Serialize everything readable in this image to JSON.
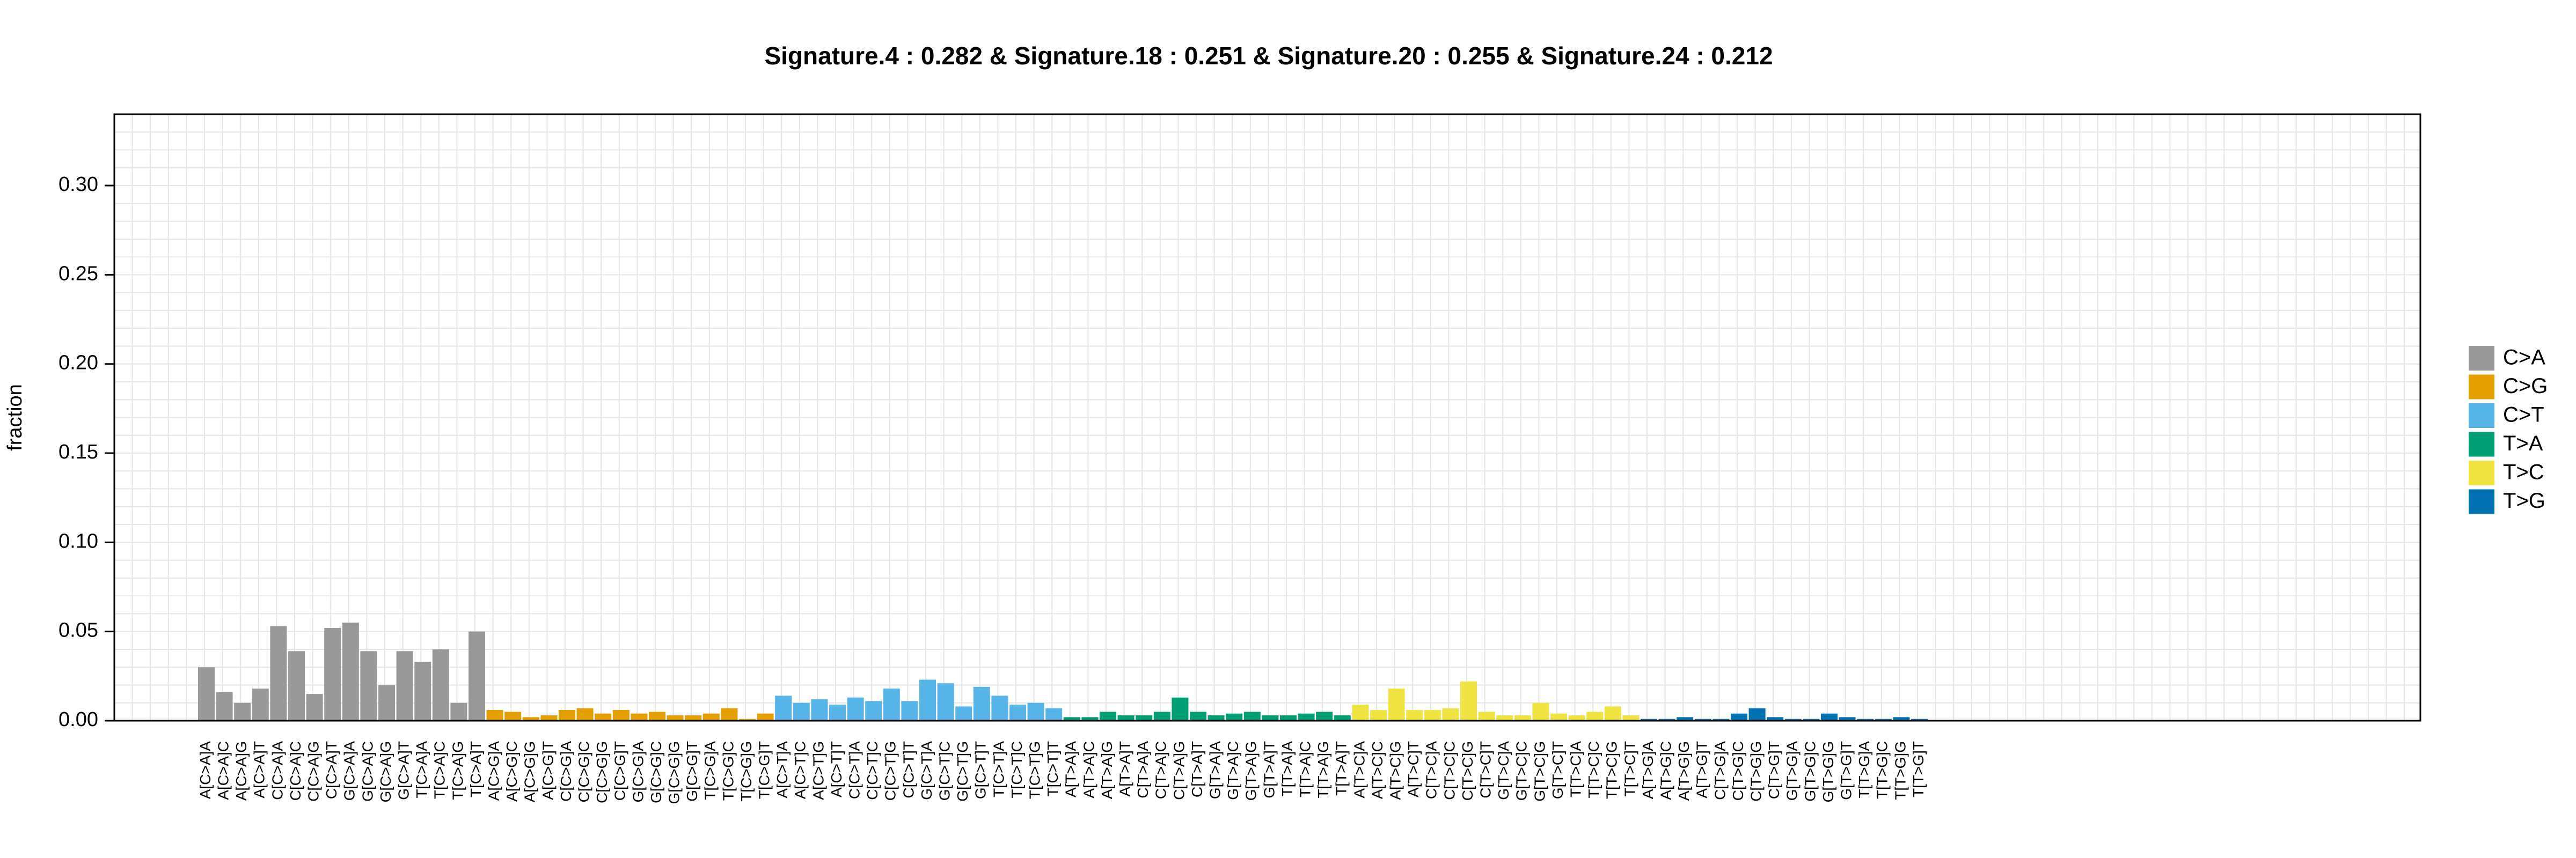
{
  "chart_data": {
    "type": "bar",
    "title": "Signature.4 : 0.282 & Signature.18 : 0.251 & Signature.20 : 0.255 & Signature.24 : 0.212",
    "xlabel": "",
    "ylabel": "fraction",
    "ylim": [
      0,
      0.34
    ],
    "yticks": [
      "0.00",
      "0.05",
      "0.10",
      "0.15",
      "0.20",
      "0.25",
      "0.30"
    ],
    "grid": true,
    "legend_position": "right",
    "groups": [
      {
        "name": "C>A",
        "color": "#999999"
      },
      {
        "name": "C>G",
        "color": "#E69F00"
      },
      {
        "name": "C>T",
        "color": "#56B4E9"
      },
      {
        "name": "T>A",
        "color": "#009E73"
      },
      {
        "name": "T>C",
        "color": "#F0E442"
      },
      {
        "name": "T>G",
        "color": "#0072B2"
      }
    ],
    "categories": [
      "A[C>A]A",
      "A[C>A]C",
      "A[C>A]G",
      "A[C>A]T",
      "C[C>A]A",
      "C[C>A]C",
      "C[C>A]G",
      "C[C>A]T",
      "G[C>A]A",
      "G[C>A]C",
      "G[C>A]G",
      "G[C>A]T",
      "T[C>A]A",
      "T[C>A]C",
      "T[C>A]G",
      "T[C>A]T",
      "A[C>G]A",
      "A[C>G]C",
      "A[C>G]G",
      "A[C>G]T",
      "C[C>G]A",
      "C[C>G]C",
      "C[C>G]G",
      "C[C>G]T",
      "G[C>G]A",
      "G[C>G]C",
      "G[C>G]G",
      "G[C>G]T",
      "T[C>G]A",
      "T[C>G]C",
      "T[C>G]G",
      "T[C>G]T",
      "A[C>T]A",
      "A[C>T]C",
      "A[C>T]G",
      "A[C>T]T",
      "C[C>T]A",
      "C[C>T]C",
      "C[C>T]G",
      "C[C>T]T",
      "G[C>T]A",
      "G[C>T]C",
      "G[C>T]G",
      "G[C>T]T",
      "T[C>T]A",
      "T[C>T]C",
      "T[C>T]G",
      "T[C>T]T",
      "A[T>A]A",
      "A[T>A]C",
      "A[T>A]G",
      "A[T>A]T",
      "C[T>A]A",
      "C[T>A]C",
      "C[T>A]G",
      "C[T>A]T",
      "G[T>A]A",
      "G[T>A]C",
      "G[T>A]G",
      "G[T>A]T",
      "T[T>A]A",
      "T[T>A]C",
      "T[T>A]G",
      "T[T>A]T",
      "A[T>C]A",
      "A[T>C]C",
      "A[T>C]G",
      "A[T>C]T",
      "C[T>C]A",
      "C[T>C]C",
      "C[T>C]G",
      "C[T>C]T",
      "G[T>C]A",
      "G[T>C]C",
      "G[T>C]G",
      "G[T>C]T",
      "T[T>C]A",
      "T[T>C]C",
      "T[T>C]G",
      "T[T>C]T",
      "A[T>G]A",
      "A[T>G]C",
      "A[T>G]G",
      "A[T>G]T",
      "C[T>G]A",
      "C[T>G]C",
      "C[T>G]G",
      "C[T>G]T",
      "G[T>G]A",
      "G[T>G]C",
      "G[T>G]G",
      "G[T>G]T",
      "T[T>G]A",
      "T[T>G]C",
      "T[T>G]G",
      "T[T>G]T"
    ],
    "values": [
      0.03,
      0.016,
      0.01,
      0.018,
      0.053,
      0.039,
      0.015,
      0.052,
      0.055,
      0.039,
      0.02,
      0.039,
      0.033,
      0.04,
      0.01,
      0.05,
      0.006,
      0.005,
      0.002,
      0.003,
      0.006,
      0.007,
      0.004,
      0.006,
      0.004,
      0.005,
      0.003,
      0.003,
      0.004,
      0.007,
      0.001,
      0.004,
      0.014,
      0.01,
      0.012,
      0.009,
      0.013,
      0.011,
      0.018,
      0.011,
      0.023,
      0.021,
      0.008,
      0.019,
      0.014,
      0.009,
      0.01,
      0.007,
      0.002,
      0.002,
      0.005,
      0.003,
      0.003,
      0.005,
      0.013,
      0.005,
      0.003,
      0.004,
      0.005,
      0.003,
      0.003,
      0.004,
      0.005,
      0.003,
      0.009,
      0.006,
      0.018,
      0.006,
      0.006,
      0.007,
      0.022,
      0.005,
      0.003,
      0.003,
      0.01,
      0.004,
      0.003,
      0.005,
      0.008,
      0.003,
      0.001,
      0.001,
      0.002,
      0.001,
      0.001,
      0.004,
      0.007,
      0.002,
      0.001,
      0.001,
      0.004,
      0.002,
      0.001,
      0.001,
      0.002,
      0.001
    ]
  }
}
